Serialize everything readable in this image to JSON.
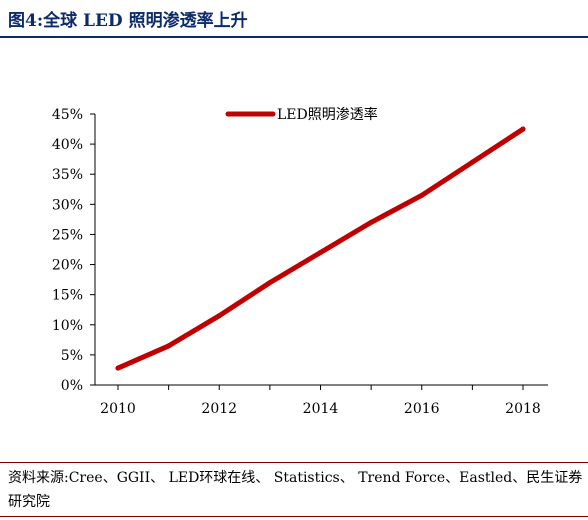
{
  "header": {
    "title": "图4:全球 LED 照明渗透率上升"
  },
  "footer": {
    "source": "资料来源:Cree、GGII、 LED环球在线、 Statistics、 Trend Force、Eastled、民生证券研究院"
  },
  "colors": {
    "title": "#0d2b6b",
    "series": "#c00000",
    "axis": "#000000"
  },
  "chart_data": {
    "type": "line",
    "title": "",
    "xlabel": "",
    "ylabel": "",
    "x": [
      2010,
      2011,
      2012,
      2013,
      2014,
      2015,
      2016,
      2017,
      2018
    ],
    "x_ticks": [
      "2010",
      "2012",
      "2014",
      "2016",
      "2018"
    ],
    "y_ticks": [
      "0%",
      "5%",
      "10%",
      "15%",
      "20%",
      "25%",
      "30%",
      "35%",
      "40%",
      "45%"
    ],
    "ylim": [
      0,
      45
    ],
    "xlim": [
      2010,
      2018
    ],
    "grid": false,
    "legend_position": "top-center",
    "series": [
      {
        "name": "LED照明渗透率",
        "values": [
          2.8,
          6.5,
          11.5,
          17.0,
          22.0,
          27.0,
          31.5,
          37.0,
          42.5
        ]
      }
    ]
  }
}
